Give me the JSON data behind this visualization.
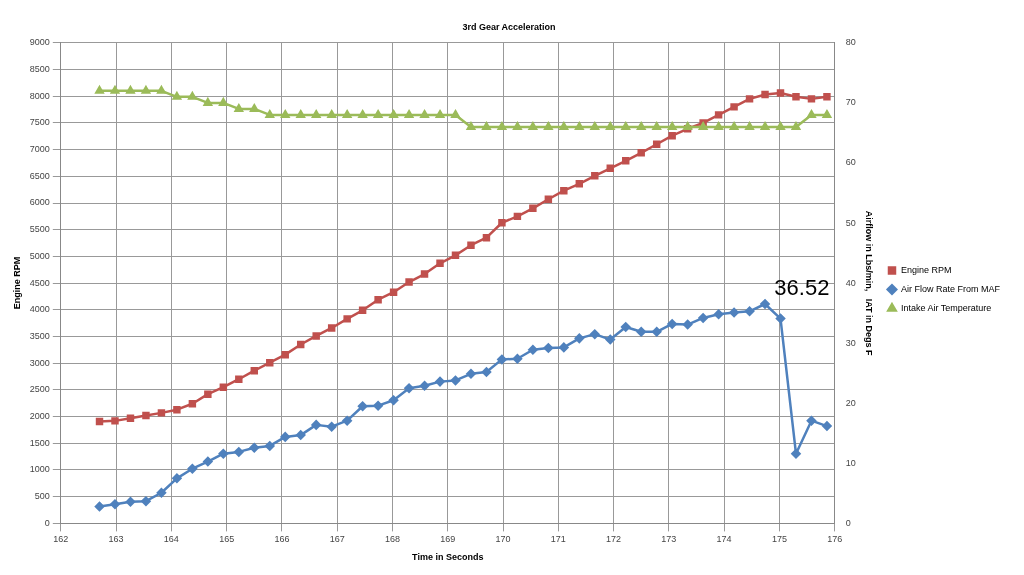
{
  "chart_data": {
    "type": "line",
    "title": "3rd Gear Acceleration",
    "xlabel": "Time in Seconds",
    "ylabel": "Engine RPM",
    "y2label": "Airflow in Lbs/min,   IAT in Degs F",
    "x": [
      162.7,
      162.98,
      163.26,
      163.54,
      163.82,
      164.1,
      164.38,
      164.66,
      164.94,
      165.22,
      165.5,
      165.78,
      166.06,
      166.34,
      166.62,
      166.9,
      167.18,
      167.46,
      167.74,
      168.02,
      168.3,
      168.58,
      168.86,
      169.14,
      169.42,
      169.7,
      169.98,
      170.26,
      170.54,
      170.82,
      171.1,
      171.38,
      171.66,
      171.94,
      172.22,
      172.5,
      172.78,
      173.06,
      173.34,
      173.62,
      173.9,
      174.18,
      174.46,
      174.74,
      175.02,
      175.3,
      175.58,
      175.86
    ],
    "series": [
      {
        "name": "Engine RPM",
        "color": "#c0504d",
        "marker": "square",
        "values": [
          1910,
          1920,
          1970,
          2020,
          2070,
          2130,
          2240,
          2420,
          2550,
          2700,
          2860,
          3010,
          3160,
          3350,
          3510,
          3660,
          3830,
          3990,
          4190,
          4330,
          4520,
          4670,
          4870,
          5020,
          5210,
          5350,
          5630,
          5750,
          5900,
          6070,
          6230,
          6360,
          6510,
          6650,
          6790,
          6940,
          7100,
          7260,
          7390,
          7500,
          7650,
          7800,
          7950,
          8030,
          8060,
          7990,
          7950,
          7990
        ]
      },
      {
        "name": "Air Flow Rate From MAF",
        "color": "#4f81bd",
        "marker": "diamond",
        "axis": "y2",
        "values": [
          2.8,
          3.2,
          3.6,
          3.7,
          5.1,
          7.5,
          9.1,
          10.3,
          11.6,
          11.9,
          12.6,
          12.9,
          14.4,
          14.7,
          16.4,
          16.1,
          17.1,
          19.5,
          19.6,
          20.5,
          22.5,
          22.9,
          23.6,
          23.8,
          24.9,
          25.2,
          27.3,
          27.4,
          28.9,
          29.2,
          29.3,
          30.8,
          31.5,
          30.6,
          32.7,
          31.9,
          31.9,
          33.2,
          33.1,
          34.2,
          34.8,
          35.1,
          35.3,
          36.52,
          34.1,
          11.6,
          17.1,
          16.2
        ]
      },
      {
        "name": "Intake Air Temperature",
        "color": "#9bbb59",
        "marker": "triangle",
        "axis": "y2",
        "values": [
          72,
          72,
          72,
          72,
          72,
          71,
          71,
          70,
          70,
          69,
          69,
          68,
          68,
          68,
          68,
          68,
          68,
          68,
          68,
          68,
          68,
          68,
          68,
          68,
          66,
          66,
          66,
          66,
          66,
          66,
          66,
          66,
          66,
          66,
          66,
          66,
          66,
          66,
          66,
          66,
          66,
          66,
          66,
          66,
          66,
          66,
          68,
          68
        ]
      }
    ],
    "xlim": [
      162,
      176
    ],
    "xticks": [
      162,
      163,
      164,
      165,
      166,
      167,
      168,
      169,
      170,
      171,
      172,
      173,
      174,
      175,
      176
    ],
    "ylim": [
      0,
      9000
    ],
    "yticks": [
      0,
      500,
      1000,
      1500,
      2000,
      2500,
      3000,
      3500,
      4000,
      4500,
      5000,
      5500,
      6000,
      6500,
      7000,
      7500,
      8000,
      8500,
      9000
    ],
    "y2lim": [
      0,
      80
    ],
    "y2ticks": [
      0,
      10,
      20,
      30,
      40,
      50,
      60,
      70,
      80
    ],
    "annotations": [
      "36.52"
    ],
    "grid": true,
    "legend": "right",
    "line_style": "solid"
  }
}
